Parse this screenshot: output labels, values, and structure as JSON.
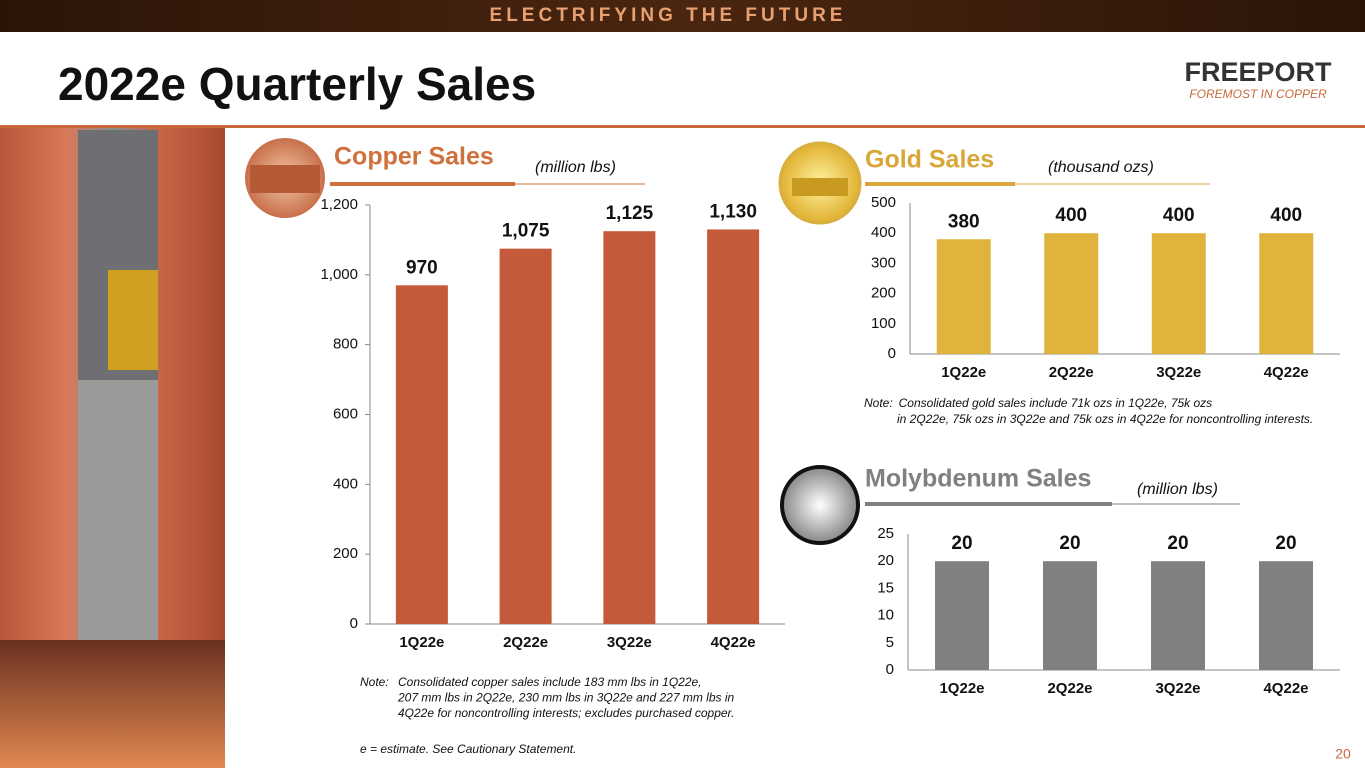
{
  "banner": "ELECTRIFYING THE FUTURE",
  "title": "2022e Quarterly Sales",
  "logo": {
    "name": "FREEPORT",
    "tagline": "FOREMOST IN COPPER"
  },
  "chart_data": [
    {
      "type": "bar",
      "title": "Copper Sales",
      "subtitle": "(million lbs)",
      "categories": [
        "1Q22e",
        "2Q22e",
        "3Q22e",
        "4Q22e"
      ],
      "values": [
        970,
        1075,
        1125,
        1130
      ],
      "value_labels": [
        "970",
        "1,075",
        "1,125",
        "1,130"
      ],
      "color": "#c55a3a",
      "ylim": [
        0,
        1200
      ],
      "yticks": [
        0,
        200,
        400,
        600,
        800,
        {
          "value": 1000,
          "label": "1,000"
        },
        {
          "value": 1200,
          "label": "1,200"
        }
      ],
      "note": {
        "label": "Note:",
        "lines": [
          "Consolidated copper sales include 183 mm lbs in 1Q22e,",
          "207 mm lbs in 2Q22e, 230 mm lbs in 3Q22e and 227 mm lbs in",
          "4Q22e for noncontrolling interests; excludes purchased copper."
        ]
      }
    },
    {
      "type": "bar",
      "title": "Gold Sales",
      "subtitle": "(thousand ozs)",
      "categories": [
        "1Q22e",
        "2Q22e",
        "3Q22e",
        "4Q22e"
      ],
      "values": [
        380,
        400,
        400,
        400
      ],
      "color": "#e0b43c",
      "ylim": [
        0,
        500
      ],
      "yticks": [
        0,
        100,
        200,
        300,
        400,
        500
      ],
      "note": {
        "label": "Note:",
        "lines": [
          "Consolidated gold sales include 71k ozs in 1Q22e, 75k ozs",
          "in 2Q22e, 75k ozs in 3Q22e and 75k ozs in 4Q22e for noncontrolling interests."
        ]
      }
    },
    {
      "type": "bar",
      "title": "Molybdenum  Sales",
      "subtitle": "(million lbs)",
      "categories": [
        "1Q22e",
        "2Q22e",
        "3Q22e",
        "4Q22e"
      ],
      "values": [
        20,
        20,
        20,
        20
      ],
      "color": "#808080",
      "ylim": [
        0,
        25
      ],
      "yticks": [
        0,
        5,
        10,
        15,
        20,
        25
      ]
    }
  ],
  "footnote": "e = estimate. See Cautionary Statement.",
  "page_number": "20"
}
